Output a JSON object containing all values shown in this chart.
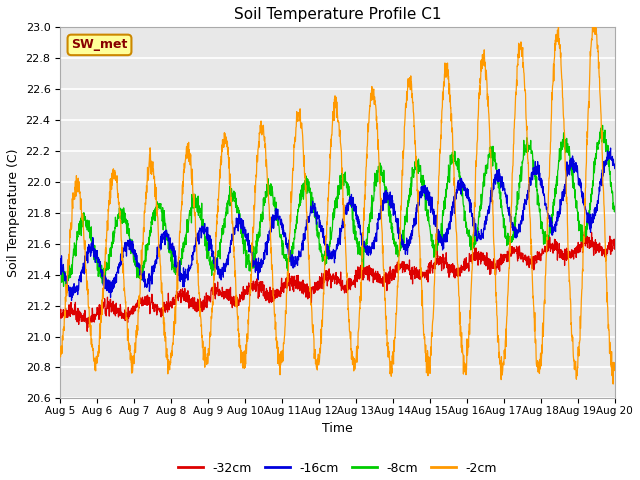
{
  "title": "Soil Temperature Profile C1",
  "xlabel": "Time",
  "ylabel": "Soil Temperature (C)",
  "ylim": [
    20.6,
    23.0
  ],
  "n_days": 15,
  "x_tick_labels": [
    "Aug 5",
    "Aug 6",
    "Aug 7",
    "Aug 8",
    "Aug 9",
    "Aug 10",
    "Aug 11",
    "Aug 12",
    "Aug 13",
    "Aug 14",
    "Aug 15",
    "Aug 16",
    "Aug 17",
    "Aug 18",
    "Aug 19",
    "Aug 20"
  ],
  "colors": {
    "-32cm": "#dd0000",
    "-16cm": "#0000dd",
    "-8cm": "#00cc00",
    "-2cm": "#ff9900"
  },
  "annotation_text": "SW_met",
  "annotation_bg": "#ffff99",
  "annotation_border": "#cc8800",
  "annotation_text_color": "#880000",
  "background_color": "#e8e8e8",
  "grid_color": "#ffffff",
  "fig_bg": "#ffffff",
  "yticks": [
    20.6,
    20.8,
    21.0,
    21.2,
    21.4,
    21.6,
    21.8,
    22.0,
    22.2,
    22.4,
    22.6,
    22.8,
    23.0
  ]
}
